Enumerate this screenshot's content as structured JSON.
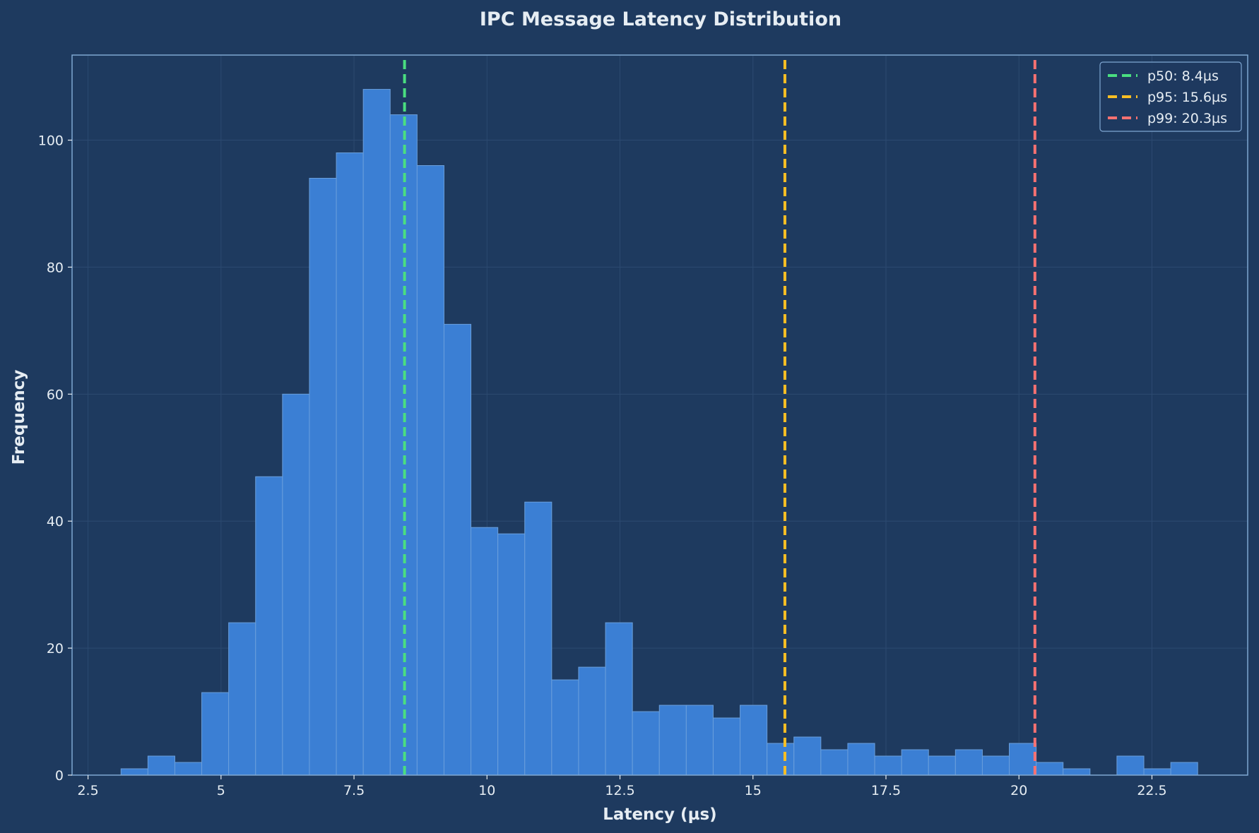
{
  "chart_data": {
    "type": "bar",
    "subtype": "histogram",
    "title": "IPC Message Latency Distribution",
    "xlabel": "Latency (µs)",
    "ylabel": "Frequency",
    "xlim": [
      2.2,
      24.3
    ],
    "ylim": [
      0,
      113.4
    ],
    "x_ticks": [
      2.5,
      5.0,
      7.5,
      10.0,
      12.5,
      15.0,
      17.5,
      20.0,
      22.5
    ],
    "y_ticks": [
      0,
      20,
      40,
      60,
      80,
      100
    ],
    "grid": true,
    "bins": {
      "start": 3.12,
      "width": 0.506,
      "counts": [
        1,
        3,
        2,
        13,
        24,
        47,
        60,
        94,
        98,
        108,
        104,
        96,
        71,
        39,
        38,
        43,
        15,
        17,
        24,
        10,
        11,
        11,
        9,
        11,
        5,
        6,
        4,
        5,
        3,
        4,
        3,
        4,
        3,
        5,
        2,
        1,
        0,
        3,
        1,
        2
      ]
    },
    "percentile_lines": [
      {
        "name": "p50: 8.4µs",
        "x": 8.45,
        "color": "#4ade80"
      },
      {
        "name": "p95: 15.6µs",
        "x": 15.6,
        "color": "#fbbf24"
      },
      {
        "name": "p99: 20.3µs",
        "x": 20.3,
        "color": "#f87171"
      }
    ],
    "legend_position": "top-right",
    "bar_color": "#3b7fd4",
    "bar_edge_color": "#6a9fdc",
    "background_color": "#1e3a5f",
    "text_color": "#e6edf3"
  }
}
